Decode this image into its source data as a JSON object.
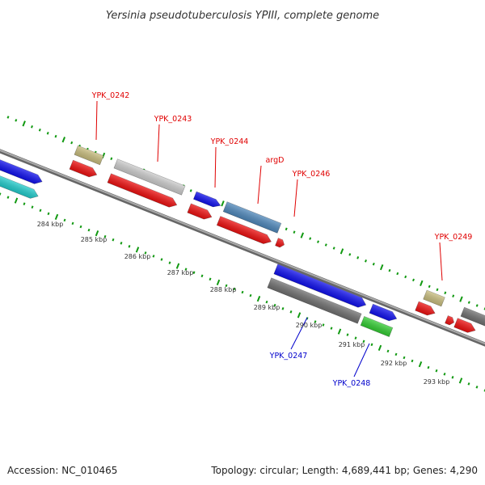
{
  "title": "Yersinia pseudotuberculosis YPIII, complete genome",
  "footer": {
    "accession": "Accession: NC_010465",
    "topology": "Topology: circular; Length: 4,689,441 bp; Genes: 4,290"
  },
  "kbp_ticks": [
    "284 kbp",
    "285 kbp",
    "286 kbp",
    "287 kbp",
    "288 kbp",
    "289 kbp",
    "290 kbp",
    "291 kbp",
    "292 kbp",
    "293 kbp"
  ],
  "gene_labels": [
    {
      "text": "YPK_0242",
      "color": "#e00000"
    },
    {
      "text": "YPK_0243",
      "color": "#e00000"
    },
    {
      "text": "YPK_0244",
      "color": "#e00000"
    },
    {
      "text": "argD",
      "color": "#e00000"
    },
    {
      "text": "YPK_0246",
      "color": "#e00000"
    },
    {
      "text": "YPK_0249",
      "color": "#e00000"
    },
    {
      "text": "YPK_0247",
      "color": "#0000cc"
    },
    {
      "text": "YPK_0248",
      "color": "#0000cc"
    }
  ],
  "colors": {
    "backbone": "#888888",
    "tick_green": "#119911",
    "cds_red": "#ee1111",
    "blue": "#1111ee",
    "cyan": "#22cccc",
    "khaki": "#c8bd7e",
    "light_gray": "#cccccc",
    "steel_blue": "#4f88bb",
    "dark_gray": "#707070",
    "green": "#33cc33"
  }
}
